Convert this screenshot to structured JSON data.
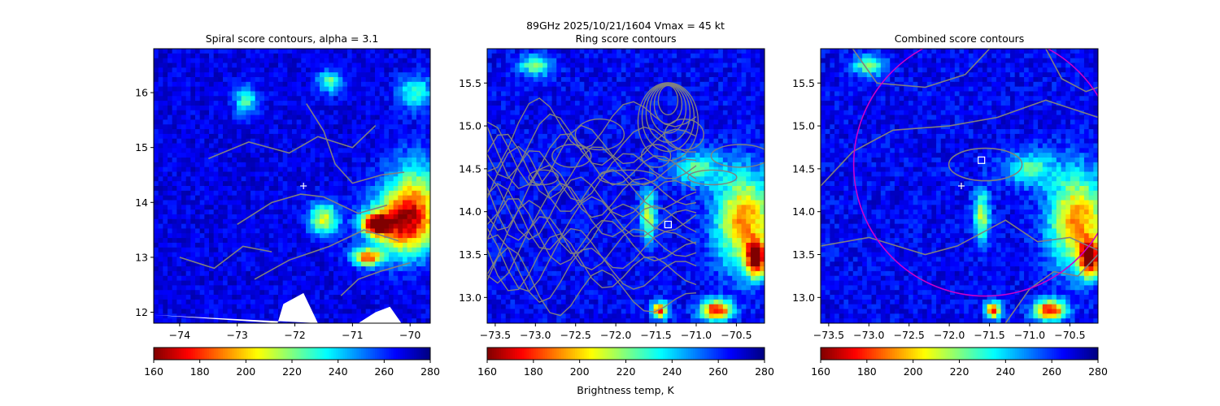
{
  "figure": {
    "suptitle_line1": "89GHz  2025/10/21/1604    Vmax = 45 kt",
    "colorbar_label": "Brightness temp, K",
    "colormap": "jet_r",
    "colorbar_ticks": [
      160,
      180,
      200,
      220,
      240,
      260,
      280
    ],
    "clim": [
      160,
      280
    ]
  },
  "chart_data": [
    {
      "type": "heatmap",
      "title": "Spiral score contours, alpha =  3.1",
      "xlabel": "",
      "ylabel": "",
      "xlim": [
        -74.45,
        -69.65
      ],
      "ylim": [
        11.8,
        16.8
      ],
      "xticks": [
        -74,
        -73,
        -72,
        -71,
        -70
      ],
      "yticks": [
        12,
        13,
        14,
        15,
        16
      ],
      "field_value_range": [
        160,
        280
      ],
      "overlays": [
        {
          "kind": "plus_marker",
          "x": -71.85,
          "y": 14.3,
          "color": "#ffffff"
        },
        {
          "kind": "contours",
          "color": "#808080"
        }
      ]
    },
    {
      "type": "heatmap",
      "title": "Ring score contours",
      "xlabel": "",
      "ylabel": "",
      "xlim": [
        -73.6,
        -70.15
      ],
      "ylim": [
        12.7,
        15.9
      ],
      "xticks": [
        -73.5,
        -73.0,
        -72.5,
        -72.0,
        -71.5,
        -71.0,
        -70.5
      ],
      "yticks": [
        13.0,
        13.5,
        14.0,
        14.5,
        15.0,
        15.5
      ],
      "field_value_range": [
        160,
        280
      ],
      "overlays": [
        {
          "kind": "square_marker",
          "x": -71.35,
          "y": 13.85,
          "color": "#ffffff"
        },
        {
          "kind": "contours",
          "color": "#808080"
        }
      ]
    },
    {
      "type": "heatmap",
      "title": "Combined score contours",
      "xlabel": "",
      "ylabel": "",
      "xlim": [
        -73.6,
        -70.15
      ],
      "ylim": [
        12.7,
        15.9
      ],
      "xticks": [
        -73.5,
        -73.0,
        -72.5,
        -72.0,
        -71.5,
        -71.0,
        -70.5
      ],
      "yticks": [
        13.0,
        13.5,
        14.0,
        14.5,
        15.0,
        15.5
      ],
      "field_value_range": [
        160,
        280
      ],
      "overlays": [
        {
          "kind": "plus_marker",
          "x": -71.85,
          "y": 14.3,
          "color": "#ffffff"
        },
        {
          "kind": "square_marker",
          "x": -71.6,
          "y": 14.6,
          "color": "#ffffff"
        },
        {
          "kind": "circle",
          "cx": -71.55,
          "cy": 14.55,
          "color": "#cc00cc"
        },
        {
          "kind": "contours",
          "color": "#808080"
        }
      ]
    }
  ]
}
